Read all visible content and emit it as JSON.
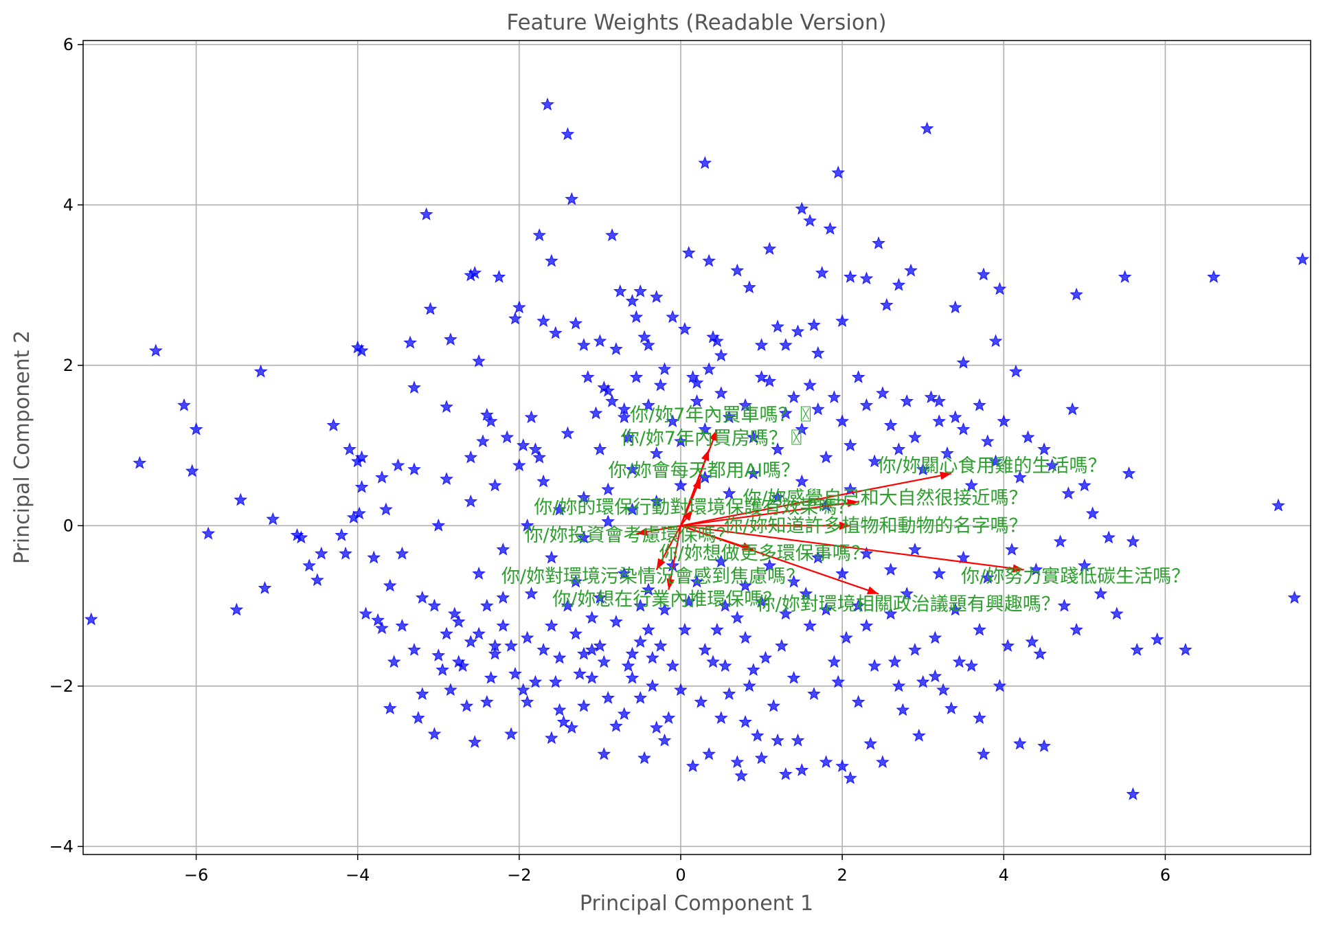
{
  "chart_data": {
    "type": "scatter",
    "title": "Feature Weights (Readable Version)",
    "xlabel": "Principal Component 1",
    "ylabel": "Principal Component 2",
    "xlim": [
      -7.4,
      7.8
    ],
    "ylim": [
      -4.1,
      6.05
    ],
    "xticks": [
      -6,
      -4,
      -2,
      0,
      2,
      4,
      6
    ],
    "yticks": [
      -4,
      -2,
      0,
      2,
      4,
      6
    ],
    "xtick_labels": [
      "−6",
      "−4",
      "−2",
      "0",
      "2",
      "4",
      "6"
    ],
    "ytick_labels": [
      "−4",
      "−2",
      "0",
      "2",
      "4",
      "6"
    ],
    "grid": true,
    "marker": "star",
    "colors": {
      "points": "#0000ff",
      "arrows": "#ff0000",
      "labels": "#2ca02c",
      "grid": "#b0b0b0"
    },
    "points": [
      [
        -7.3,
        -1.17
      ],
      [
        -6.7,
        0.78
      ],
      [
        -6.5,
        2.18
      ],
      [
        -6.15,
        1.5
      ],
      [
        -6.0,
        1.2
      ],
      [
        -6.05,
        0.68
      ],
      [
        -5.85,
        -0.1
      ],
      [
        -5.5,
        -1.05
      ],
      [
        -5.45,
        0.32
      ],
      [
        -5.2,
        1.92
      ],
      [
        -5.15,
        -0.78
      ],
      [
        -5.05,
        0.08
      ],
      [
        -4.75,
        -0.12
      ],
      [
        -4.7,
        -0.15
      ],
      [
        -4.6,
        -0.5
      ],
      [
        -4.5,
        -0.68
      ],
      [
        -4.45,
        -0.35
      ],
      [
        -4.3,
        1.25
      ],
      [
        -4.2,
        -0.12
      ],
      [
        -4.15,
        -0.35
      ],
      [
        -4.1,
        0.95
      ],
      [
        -4.0,
        2.22
      ],
      [
        -3.95,
        2.18
      ],
      [
        -3.95,
        0.85
      ],
      [
        -3.98,
        0.15
      ],
      [
        -3.95,
        0.48
      ],
      [
        -3.9,
        -1.1
      ],
      [
        -3.75,
        -1.18
      ],
      [
        -3.7,
        -1.28
      ],
      [
        -3.6,
        -2.28
      ],
      [
        -3.5,
        0.75
      ],
      [
        -3.45,
        -1.25
      ],
      [
        -3.35,
        2.28
      ],
      [
        -3.3,
        1.72
      ],
      [
        -3.15,
        3.88
      ],
      [
        -3.1,
        2.7
      ],
      [
        -3.0,
        -1.62
      ],
      [
        -2.9,
        1.48
      ],
      [
        -2.9,
        0.58
      ],
      [
        -2.85,
        2.32
      ],
      [
        -2.8,
        -1.1
      ],
      [
        -2.75,
        -1.7
      ],
      [
        -2.6,
        3.12
      ],
      [
        -2.55,
        3.15
      ],
      [
        -2.5,
        2.05
      ],
      [
        -2.45,
        1.05
      ],
      [
        -2.4,
        1.38
      ],
      [
        -2.35,
        1.3
      ],
      [
        -2.3,
        -1.6
      ],
      [
        -2.25,
        3.1
      ],
      [
        -2.2,
        -0.9
      ],
      [
        -2.1,
        -1.5
      ],
      [
        -2.05,
        2.58
      ],
      [
        -2.0,
        2.72
      ],
      [
        -1.95,
        1.0
      ],
      [
        -1.9,
        -2.2
      ],
      [
        -1.85,
        1.35
      ],
      [
        -1.8,
        0.95
      ],
      [
        -1.75,
        3.62
      ],
      [
        -1.7,
        2.55
      ],
      [
        -1.65,
        5.25
      ],
      [
        -1.6,
        3.3
      ],
      [
        -1.55,
        2.4
      ],
      [
        -1.5,
        -1.65
      ],
      [
        -1.45,
        -2.45
      ],
      [
        -1.4,
        4.88
      ],
      [
        -1.35,
        4.07
      ],
      [
        -1.3,
        2.52
      ],
      [
        -1.2,
        2.25
      ],
      [
        -1.15,
        1.85
      ],
      [
        -1.1,
        -1.55
      ],
      [
        -1.05,
        1.4
      ],
      [
        -1.0,
        2.3
      ],
      [
        -0.95,
        1.72
      ],
      [
        -0.9,
        1.68
      ],
      [
        -0.85,
        3.62
      ],
      [
        -0.8,
        2.2
      ],
      [
        -0.75,
        2.92
      ],
      [
        -0.7,
        1.45
      ],
      [
        -0.65,
        1.1
      ],
      [
        -0.6,
        2.8
      ],
      [
        -0.55,
        2.6
      ],
      [
        -0.5,
        2.92
      ],
      [
        -0.45,
        2.35
      ],
      [
        -0.4,
        2.25
      ],
      [
        -0.3,
        2.85
      ],
      [
        -0.2,
        1.95
      ],
      [
        -0.1,
        2.6
      ],
      [
        0.05,
        2.45
      ],
      [
        0.1,
        3.4
      ],
      [
        0.2,
        1.78
      ],
      [
        0.3,
        4.52
      ],
      [
        0.35,
        3.3
      ],
      [
        0.4,
        2.35
      ],
      [
        0.5,
        2.12
      ],
      [
        0.7,
        3.18
      ],
      [
        0.85,
        2.97
      ],
      [
        1.0,
        2.25
      ],
      [
        1.1,
        3.45
      ],
      [
        1.2,
        2.48
      ],
      [
        1.3,
        2.25
      ],
      [
        1.45,
        2.42
      ],
      [
        1.5,
        3.95
      ],
      [
        1.6,
        3.8
      ],
      [
        1.65,
        2.5
      ],
      [
        1.7,
        2.15
      ],
      [
        1.75,
        3.15
      ],
      [
        1.85,
        3.7
      ],
      [
        1.95,
        4.4
      ],
      [
        2.0,
        2.55
      ],
      [
        2.1,
        3.1
      ],
      [
        2.3,
        3.08
      ],
      [
        2.45,
        3.52
      ],
      [
        2.55,
        2.75
      ],
      [
        2.7,
        3.0
      ],
      [
        2.85,
        3.18
      ],
      [
        3.05,
        4.95
      ],
      [
        3.2,
        1.55
      ],
      [
        3.4,
        2.72
      ],
      [
        3.5,
        2.03
      ],
      [
        3.75,
        3.13
      ],
      [
        3.9,
        2.3
      ],
      [
        3.95,
        2.95
      ],
      [
        4.15,
        1.92
      ],
      [
        4.85,
        1.45
      ],
      [
        4.9,
        2.88
      ],
      [
        5.5,
        3.1
      ],
      [
        5.55,
        0.65
      ],
      [
        5.6,
        -0.2
      ],
      [
        5.65,
        -1.55
      ],
      [
        5.6,
        -3.35
      ],
      [
        5.9,
        -1.42
      ],
      [
        6.25,
        -1.55
      ],
      [
        6.6,
        3.1
      ],
      [
        7.4,
        0.25
      ],
      [
        7.6,
        -0.9
      ],
      [
        7.7,
        3.32
      ],
      [
        4.5,
        -2.75
      ],
      [
        4.2,
        -2.72
      ],
      [
        4.35,
        -1.45
      ],
      [
        3.75,
        -2.85
      ],
      [
        3.7,
        -2.4
      ],
      [
        3.35,
        -2.28
      ],
      [
        3.15,
        -1.88
      ],
      [
        2.95,
        -2.62
      ],
      [
        2.7,
        -2.0
      ],
      [
        2.5,
        -2.95
      ],
      [
        2.35,
        -2.72
      ],
      [
        2.0,
        -3.0
      ],
      [
        1.8,
        -2.95
      ],
      [
        1.5,
        -3.05
      ],
      [
        1.45,
        -2.68
      ],
      [
        1.2,
        -2.68
      ],
      [
        0.95,
        -2.62
      ],
      [
        0.8,
        -2.45
      ],
      [
        0.7,
        -2.95
      ],
      [
        0.75,
        -3.12
      ],
      [
        0.5,
        -2.4
      ],
      [
        0.25,
        -2.2
      ],
      [
        0.0,
        -2.05
      ],
      [
        -0.2,
        -2.68
      ],
      [
        -0.3,
        -2.52
      ],
      [
        -0.5,
        -2.15
      ],
      [
        -0.7,
        -2.35
      ],
      [
        -0.9,
        -2.15
      ],
      [
        -1.1,
        -1.9
      ],
      [
        -1.35,
        -2.52
      ],
      [
        -1.6,
        -2.65
      ],
      [
        -1.8,
        -1.95
      ],
      [
        -2.05,
        -1.85
      ],
      [
        -2.4,
        -2.2
      ],
      [
        -2.65,
        -2.25
      ],
      [
        -2.85,
        -2.05
      ],
      [
        -3.2,
        -2.1
      ],
      [
        -3.3,
        -1.55
      ],
      [
        -2.7,
        -1.75
      ],
      [
        -2.5,
        -1.35
      ],
      [
        -2.2,
        -1.25
      ],
      [
        -1.9,
        -1.4
      ],
      [
        -1.6,
        -1.25
      ],
      [
        -1.3,
        -1.35
      ],
      [
        -1.0,
        -1.5
      ],
      [
        -0.8,
        -1.2
      ],
      [
        -0.6,
        -1.6
      ],
      [
        -0.4,
        -1.3
      ],
      [
        -0.2,
        -1.05
      ],
      [
        0.05,
        -1.3
      ],
      [
        0.3,
        -1.55
      ],
      [
        0.55,
        -1.0
      ],
      [
        0.8,
        -1.4
      ],
      [
        1.05,
        -1.65
      ],
      [
        1.3,
        -1.1
      ],
      [
        1.55,
        -0.85
      ],
      [
        1.8,
        -1.05
      ],
      [
        2.05,
        -1.4
      ],
      [
        2.3,
        -1.25
      ],
      [
        2.6,
        -1.1
      ],
      [
        2.9,
        -1.55
      ],
      [
        3.15,
        -1.4
      ],
      [
        3.4,
        -1.05
      ],
      [
        3.7,
        -1.3
      ],
      [
        3.6,
        -1.75
      ],
      [
        3.0,
        -1.95
      ],
      [
        2.4,
        -1.75
      ],
      [
        1.9,
        -1.7
      ],
      [
        1.4,
        -1.9
      ],
      [
        0.9,
        -1.8
      ],
      [
        0.4,
        -1.7
      ],
      [
        -0.1,
        -1.75
      ],
      [
        -0.6,
        -1.9
      ],
      [
        -1.2,
        -1.6
      ],
      [
        -1.7,
        -1.55
      ],
      [
        -2.3,
        -1.5
      ],
      [
        -2.9,
        -1.35
      ],
      [
        -3.2,
        -0.9
      ],
      [
        -3.6,
        -0.75
      ],
      [
        -3.0,
        0.0
      ],
      [
        -2.6,
        0.3
      ],
      [
        -2.3,
        0.5
      ],
      [
        -2.0,
        0.75
      ],
      [
        -1.7,
        0.55
      ],
      [
        -1.5,
        0.2
      ],
      [
        -1.2,
        0.35
      ],
      [
        -0.9,
        0.45
      ],
      [
        -0.6,
        0.7
      ],
      [
        -0.3,
        0.9
      ],
      [
        0.0,
        1.05
      ],
      [
        0.3,
        1.2
      ],
      [
        0.6,
        1.35
      ],
      [
        0.9,
        1.1
      ],
      [
        1.2,
        0.95
      ],
      [
        1.5,
        1.2
      ],
      [
        1.8,
        0.85
      ],
      [
        2.1,
        1.0
      ],
      [
        2.4,
        0.8
      ],
      [
        2.7,
        0.95
      ],
      [
        3.0,
        0.7
      ],
      [
        3.3,
        0.9
      ],
      [
        3.6,
        0.5
      ],
      [
        3.9,
        0.8
      ],
      [
        4.2,
        0.6
      ],
      [
        4.5,
        0.95
      ],
      [
        4.8,
        0.4
      ],
      [
        5.1,
        0.15
      ],
      [
        5.3,
        -0.15
      ],
      [
        -1.0,
        0.95
      ],
      [
        -0.7,
        1.35
      ],
      [
        -0.4,
        1.5
      ],
      [
        -0.1,
        1.3
      ],
      [
        0.2,
        1.55
      ],
      [
        0.5,
        1.65
      ],
      [
        0.8,
        1.5
      ],
      [
        1.1,
        1.8
      ],
      [
        1.4,
        1.6
      ],
      [
        1.7,
        1.45
      ],
      [
        2.0,
        1.3
      ],
      [
        2.3,
        1.5
      ],
      [
        2.6,
        1.25
      ],
      [
        2.9,
        1.1
      ],
      [
        3.2,
        1.3
      ],
      [
        3.5,
        1.2
      ],
      [
        3.8,
        1.05
      ],
      [
        -1.9,
        0.0
      ],
      [
        -2.2,
        -0.3
      ],
      [
        -2.5,
        -0.6
      ],
      [
        -1.6,
        -0.4
      ],
      [
        -1.3,
        -0.7
      ],
      [
        -1.0,
        -0.9
      ],
      [
        -0.7,
        -0.6
      ],
      [
        -0.4,
        -0.8
      ],
      [
        -0.1,
        -0.5
      ],
      [
        0.2,
        -0.7
      ],
      [
        0.5,
        -0.45
      ],
      [
        0.8,
        -0.75
      ],
      [
        1.1,
        -0.5
      ],
      [
        1.4,
        -0.7
      ],
      [
        1.7,
        -0.4
      ],
      [
        2.0,
        -0.6
      ],
      [
        2.3,
        -0.35
      ],
      [
        2.6,
        -0.55
      ],
      [
        2.9,
        -0.3
      ],
      [
        3.2,
        -0.6
      ],
      [
        3.5,
        -0.4
      ],
      [
        3.8,
        -0.65
      ],
      [
        4.1,
        -0.3
      ],
      [
        4.4,
        -0.55
      ],
      [
        4.7,
        -0.2
      ],
      [
        -1.4,
        -1.0
      ],
      [
        -1.1,
        -1.15
      ],
      [
        -0.5,
        -1.0
      ],
      [
        0.1,
        -0.95
      ],
      [
        0.7,
        -1.15
      ],
      [
        1.0,
        -0.95
      ],
      [
        1.6,
        -1.25
      ],
      [
        2.2,
        -1.0
      ],
      [
        2.8,
        -0.85
      ],
      [
        -0.3,
        0.3
      ],
      [
        0.0,
        0.5
      ],
      [
        0.3,
        0.6
      ],
      [
        0.6,
        0.4
      ],
      [
        0.9,
        0.65
      ],
      [
        1.2,
        0.35
      ],
      [
        1.5,
        0.55
      ],
      [
        1.8,
        0.25
      ],
      [
        2.1,
        0.45
      ],
      [
        -0.6,
        0.2
      ],
      [
        -0.9,
        0.05
      ],
      [
        -1.2,
        -0.15
      ],
      [
        0.15,
        1.85
      ],
      [
        0.35,
        1.95
      ],
      [
        0.45,
        2.3
      ],
      [
        -0.25,
        1.75
      ],
      [
        -0.55,
        1.85
      ],
      [
        -0.85,
        1.55
      ],
      [
        -1.4,
        1.15
      ],
      [
        -1.75,
        0.85
      ],
      [
        -2.15,
        1.1
      ],
      [
        -2.6,
        0.85
      ],
      [
        -3.3,
        0.7
      ],
      [
        -3.7,
        0.6
      ],
      [
        -4.0,
        0.8
      ],
      [
        -4.05,
        0.1
      ],
      [
        1.0,
        1.85
      ],
      [
        1.3,
        1.4
      ],
      [
        1.6,
        1.75
      ],
      [
        1.9,
        1.6
      ],
      [
        2.2,
        1.85
      ],
      [
        2.5,
        1.65
      ],
      [
        2.8,
        1.55
      ],
      [
        3.1,
        1.6
      ],
      [
        3.4,
        1.35
      ],
      [
        3.7,
        1.5
      ],
      [
        4.0,
        1.3
      ],
      [
        4.3,
        1.1
      ],
      [
        4.6,
        0.75
      ],
      [
        5.0,
        0.5
      ],
      [
        -0.15,
        -2.4
      ],
      [
        0.6,
        -2.1
      ],
      [
        1.15,
        -2.25
      ],
      [
        1.65,
        -2.1
      ],
      [
        2.2,
        -2.2
      ],
      [
        2.75,
        -2.3
      ],
      [
        3.25,
        -2.05
      ],
      [
        -0.35,
        -2.0
      ],
      [
        -0.8,
        -2.5
      ],
      [
        -1.5,
        -2.3
      ],
      [
        -2.1,
        -2.6
      ],
      [
        -1.2,
        -2.25
      ],
      [
        0.35,
        -2.85
      ],
      [
        1.0,
        -2.9
      ],
      [
        -3.05,
        -2.6
      ],
      [
        -2.55,
        -2.7
      ],
      [
        -0.95,
        -2.85
      ],
      [
        -0.45,
        -2.9
      ],
      [
        0.15,
        -3.0
      ],
      [
        1.3,
        -3.1
      ],
      [
        2.1,
        -3.15
      ],
      [
        -1.85,
        -0.85
      ],
      [
        -2.4,
        -1.0
      ],
      [
        -2.75,
        -1.2
      ],
      [
        -3.05,
        -1.0
      ],
      [
        -3.45,
        -0.35
      ],
      [
        -3.8,
        -0.4
      ],
      [
        -3.65,
        0.2
      ],
      [
        -0.25,
        -1.5
      ],
      [
        0.45,
        -1.3
      ],
      [
        1.25,
        -1.5
      ],
      [
        1.95,
        -1.95
      ],
      [
        2.65,
        -1.7
      ],
      [
        3.45,
        -1.7
      ],
      [
        4.05,
        -1.5
      ],
      [
        -0.5,
        -1.45
      ],
      [
        -0.65,
        -1.75
      ],
      [
        -0.95,
        -1.7
      ],
      [
        -1.25,
        -1.85
      ],
      [
        -0.35,
        -1.65
      ],
      [
        0.55,
        -1.75
      ],
      [
        0.85,
        -2.0
      ],
      [
        -1.55,
        -1.95
      ],
      [
        -1.95,
        -2.05
      ],
      [
        -2.35,
        -1.9
      ],
      [
        -2.6,
        -1.45
      ],
      [
        -2.95,
        -1.8
      ],
      [
        -3.25,
        -2.4
      ],
      [
        -3.55,
        -1.7
      ],
      [
        4.75,
        -1.0
      ],
      [
        5.0,
        -0.5
      ],
      [
        5.2,
        -0.85
      ],
      [
        5.4,
        -1.1
      ],
      [
        4.9,
        -1.3
      ],
      [
        4.45,
        -1.6
      ],
      [
        3.95,
        -2.0
      ]
    ],
    "arrows": [
      {
        "dx": 0.45,
        "dy": 1.2,
        "label": "你/妳7年內買車嗎？",
        "glyph": "〿"
      },
      {
        "dx": 0.35,
        "dy": 0.95,
        "label": "你/妳7年內買房嗎？",
        "glyph": "〿"
      },
      {
        "dx": 0.25,
        "dy": 0.6,
        "label": "你/妳會每天都用AI嗎？",
        "glyph": ""
      },
      {
        "dx": 3.35,
        "dy": 0.65,
        "label": "你/妳關心食用雞的生活嗎？",
        "glyph": ""
      },
      {
        "dx": 2.2,
        "dy": 0.3,
        "label": "你/妳感覺自己和大自然很接近嗎？",
        "glyph": ""
      },
      {
        "dx": 0.15,
        "dy": 0.2,
        "label": "你/妳的環保行動對環境保護有效果嗎？",
        "glyph": ""
      },
      {
        "dx": 2.1,
        "dy": 0.0,
        "label": "你/妳知道許多植物和動物的名字嗎？",
        "glyph": ""
      },
      {
        "dx": -0.55,
        "dy": -0.1,
        "label": "你/妳投資會考慮環保嗎？",
        "glyph": ""
      },
      {
        "dx": 0.9,
        "dy": -0.3,
        "label": "你/妳想做更多環保事嗎？",
        "glyph": ""
      },
      {
        "dx": -0.3,
        "dy": -0.55,
        "label": "你/妳對環境污染情況會感到焦慮嗎？",
        "glyph": ""
      },
      {
        "dx": 4.25,
        "dy": -0.55,
        "label": "你/妳努力實踐低碳生活嗎？",
        "glyph": ""
      },
      {
        "dx": -0.15,
        "dy": -0.8,
        "label": "你/妳想在行業內推環保嗎？",
        "glyph": ""
      },
      {
        "dx": 2.45,
        "dy": -0.85,
        "label": "你/妳對環境相關政治議題有興趣嗎？",
        "glyph": ""
      }
    ]
  }
}
